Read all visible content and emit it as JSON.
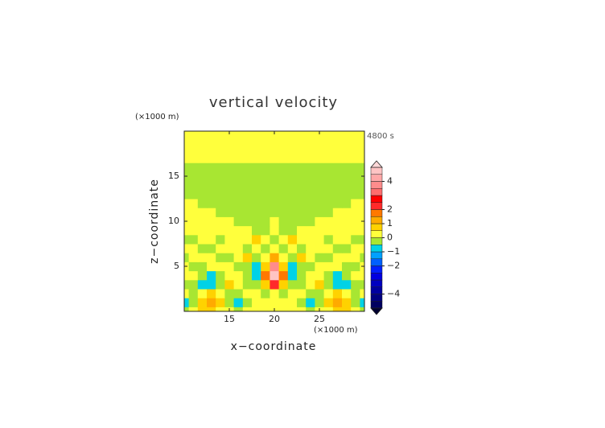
{
  "chart_data": {
    "type": "contour",
    "title": "vertical velocity",
    "x_unit": "(×1000 m)",
    "y_unit": "(×1000 m)",
    "time_label": "4800 s",
    "xlabel": "x−coordinate",
    "ylabel": "z−coordinate",
    "xlim": [
      10,
      30
    ],
    "ylim": [
      0,
      20
    ],
    "xticks": [
      15,
      20,
      25
    ],
    "yticks": [
      5,
      10,
      15
    ],
    "x": [
      10,
      11,
      12,
      13,
      14,
      15,
      16,
      17,
      18,
      19,
      20,
      21,
      22,
      23,
      24,
      25,
      26,
      27,
      28,
      29,
      30
    ],
    "y": [
      0,
      1,
      2,
      3,
      4,
      5,
      6,
      7,
      8,
      9,
      10,
      11,
      12,
      13,
      14,
      15,
      16,
      17,
      18,
      19,
      20
    ],
    "z": [
      [
        -0.2,
        0.2,
        0.6,
        0.8,
        0.4,
        0.2,
        -0.2,
        0.2,
        0.4,
        0.2,
        0.2,
        0.2,
        0.4,
        0.2,
        -0.2,
        0.2,
        0.4,
        0.8,
        0.6,
        0.2,
        -0.2
      ],
      [
        -0.8,
        -0.4,
        0.8,
        1.1,
        0.6,
        -0.3,
        -0.9,
        -0.3,
        0.2,
        0.4,
        0.2,
        0.4,
        0.2,
        -0.3,
        -0.9,
        -0.3,
        0.6,
        1.1,
        0.8,
        -0.4,
        -0.8
      ],
      [
        0.2,
        -0.2,
        0.3,
        0.6,
        0.2,
        -0.2,
        -0.4,
        0.2,
        0.3,
        -0.2,
        0.4,
        -0.2,
        0.3,
        0.2,
        -0.4,
        -0.2,
        0.2,
        0.6,
        0.3,
        -0.2,
        0.2
      ],
      [
        -0.2,
        -0.4,
        -0.8,
        -0.6,
        -0.2,
        0.6,
        0.4,
        -0.2,
        -0.4,
        0.6,
        2.2,
        0.6,
        -0.4,
        -0.2,
        0.4,
        0.6,
        -0.2,
        -0.6,
        -0.8,
        -0.4,
        -0.2
      ],
      [
        0.3,
        0.2,
        -0.2,
        -0.6,
        -0.4,
        0.2,
        0.2,
        -0.2,
        -0.6,
        1.5,
        4.6,
        1.5,
        -0.6,
        -0.2,
        0.2,
        0.2,
        -0.4,
        -0.6,
        -0.2,
        0.2,
        0.3
      ],
      [
        0.2,
        -0.2,
        -0.2,
        0.2,
        0.2,
        0.3,
        -0.2,
        -0.4,
        -0.8,
        0.8,
        3.5,
        0.8,
        -0.8,
        -0.4,
        -0.2,
        0.3,
        0.2,
        0.2,
        -0.2,
        -0.2,
        0.2
      ],
      [
        -0.2,
        0.2,
        0.3,
        0.2,
        -0.2,
        -0.2,
        0.2,
        0.6,
        -0.2,
        0.4,
        1.2,
        0.4,
        -0.2,
        0.6,
        0.2,
        -0.2,
        -0.2,
        0.2,
        0.3,
        0.2,
        -0.2
      ],
      [
        0.2,
        0.2,
        -0.2,
        -0.2,
        0.2,
        0.3,
        0.2,
        -0.2,
        0.3,
        -0.3,
        0.2,
        -0.3,
        0.3,
        -0.2,
        0.2,
        0.3,
        0.2,
        -0.2,
        -0.2,
        0.2,
        0.2
      ],
      [
        -0.2,
        -0.2,
        0.2,
        0.2,
        -0.2,
        0.2,
        0.2,
        0.3,
        0.6,
        0.2,
        -0.3,
        0.2,
        0.6,
        0.3,
        0.2,
        0.2,
        -0.2,
        0.2,
        0.2,
        -0.2,
        -0.2
      ],
      [
        0.2,
        0.2,
        0.2,
        0.2,
        0.2,
        0.2,
        0.2,
        0.2,
        -0.2,
        -0.2,
        0.4,
        -0.2,
        -0.2,
        0.2,
        0.2,
        0.2,
        0.2,
        0.2,
        0.2,
        0.2,
        0.2
      ],
      [
        0.2,
        0.2,
        0.2,
        0.2,
        0.2,
        0.2,
        -0.2,
        -0.2,
        -0.2,
        -0.2,
        0.3,
        -0.2,
        -0.2,
        -0.2,
        -0.2,
        0.2,
        0.2,
        0.2,
        0.2,
        0.2,
        0.2
      ],
      [
        0.2,
        0.2,
        0.2,
        0.2,
        -0.2,
        -0.2,
        -0.2,
        -0.2,
        -0.2,
        -0.2,
        -0.2,
        -0.2,
        -0.2,
        -0.2,
        -0.2,
        -0.2,
        -0.2,
        0.2,
        0.2,
        0.2,
        0.2
      ],
      [
        0.2,
        0.2,
        -0.2,
        -0.2,
        -0.2,
        -0.2,
        -0.2,
        -0.2,
        -0.2,
        -0.2,
        -0.2,
        -0.2,
        -0.2,
        -0.2,
        -0.2,
        -0.2,
        -0.2,
        -0.2,
        -0.2,
        0.2,
        0.2
      ],
      [
        -0.2,
        -0.2,
        -0.2,
        -0.2,
        -0.2,
        -0.2,
        -0.2,
        -0.2,
        -0.2,
        -0.2,
        -0.2,
        -0.2,
        -0.2,
        -0.2,
        -0.2,
        -0.2,
        -0.2,
        -0.2,
        -0.2,
        -0.2,
        -0.2
      ],
      [
        -0.2,
        -0.2,
        -0.2,
        -0.2,
        -0.2,
        -0.2,
        -0.2,
        -0.2,
        -0.2,
        -0.2,
        -0.2,
        -0.2,
        -0.2,
        -0.2,
        -0.2,
        -0.2,
        -0.2,
        -0.2,
        -0.2,
        -0.2,
        -0.2
      ],
      [
        -0.2,
        -0.2,
        -0.2,
        -0.2,
        -0.2,
        -0.2,
        -0.2,
        -0.2,
        -0.2,
        -0.2,
        -0.2,
        -0.2,
        -0.2,
        -0.2,
        -0.2,
        -0.2,
        -0.2,
        -0.2,
        -0.2,
        -0.2,
        -0.2
      ],
      [
        -0.2,
        -0.2,
        -0.2,
        -0.2,
        -0.2,
        -0.2,
        -0.2,
        -0.2,
        -0.2,
        -0.2,
        -0.2,
        -0.2,
        -0.2,
        -0.2,
        -0.2,
        -0.2,
        -0.2,
        -0.2,
        -0.2,
        -0.2,
        -0.2
      ],
      [
        0.2,
        0.2,
        0.2,
        0.2,
        0.2,
        0.2,
        0.2,
        0.2,
        0.2,
        0.2,
        0.2,
        0.2,
        0.2,
        0.2,
        0.2,
        0.2,
        0.2,
        0.2,
        0.2,
        0.2,
        0.2
      ],
      [
        0.2,
        0.2,
        0.2,
        0.2,
        0.2,
        0.2,
        0.2,
        0.2,
        0.2,
        0.2,
        0.2,
        0.2,
        0.2,
        0.2,
        0.2,
        0.2,
        0.2,
        0.2,
        0.2,
        0.2,
        0.2
      ],
      [
        0.2,
        0.2,
        0.2,
        0.2,
        0.2,
        0.2,
        0.2,
        0.2,
        0.2,
        0.2,
        0.2,
        0.2,
        0.2,
        0.2,
        0.2,
        0.2,
        0.2,
        0.2,
        0.2,
        0.2,
        0.2
      ],
      [
        0.2,
        0.2,
        0.2,
        0.2,
        0.2,
        0.2,
        0.2,
        0.2,
        0.2,
        0.2,
        0.2,
        0.2,
        0.2,
        0.2,
        0.2,
        0.2,
        0.2,
        0.2,
        0.2,
        0.2,
        0.2
      ]
    ],
    "levels": [
      -5,
      -4.5,
      -4,
      -3.5,
      -3,
      -2.5,
      -2,
      -1.5,
      -1,
      -0.5,
      0,
      0.5,
      1,
      1.5,
      2,
      2.5,
      3,
      3.5,
      4,
      4.5,
      5
    ],
    "colors": [
      "#000060",
      "#000080",
      "#0000a0",
      "#0000c0",
      "#0000e0",
      "#0020ff",
      "#0060ff",
      "#00a0ff",
      "#00d2e6",
      "#a8e632",
      "#ffff3c",
      "#ffd200",
      "#ffaa00",
      "#ff7800",
      "#ff2a2a",
      "#ff0000",
      "#ff6e6e",
      "#ff8c8c",
      "#ffa8a8",
      "#ffc4c4"
    ],
    "over_color": "#ffd8d8",
    "under_color": "#000030",
    "cbar_ticks": [
      {
        "value": -4,
        "label": "−4"
      },
      {
        "value": -2,
        "label": "−2"
      },
      {
        "value": -1,
        "label": "−1"
      },
      0,
      1,
      2,
      4
    ]
  }
}
